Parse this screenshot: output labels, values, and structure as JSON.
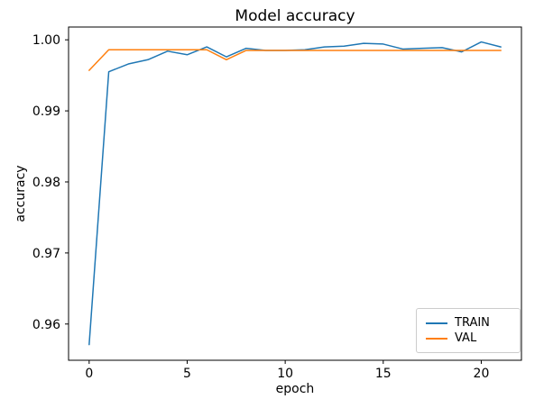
{
  "chart_data": {
    "type": "line",
    "title": "Model accuracy",
    "xlabel": "epoch",
    "ylabel": "accuracy",
    "grid": false,
    "legend_position": "lower right",
    "x": [
      0,
      1,
      2,
      3,
      4,
      5,
      6,
      7,
      8,
      9,
      10,
      11,
      12,
      13,
      14,
      15,
      16,
      17,
      18,
      19,
      20,
      21
    ],
    "series": [
      {
        "name": "TRAIN",
        "color": "#1f77b4",
        "values": [
          0.9571,
          0.9955,
          0.9966,
          0.9972,
          0.9984,
          0.9979,
          0.999,
          0.9976,
          0.9988,
          0.9985,
          0.9985,
          0.9986,
          0.999,
          0.9991,
          0.9995,
          0.9994,
          0.9987,
          0.9988,
          0.9989,
          0.9983,
          0.9997,
          0.999
        ]
      },
      {
        "name": "VAL",
        "color": "#ff7f0e",
        "values": [
          0.9957,
          0.9986,
          0.9986,
          0.9986,
          0.9986,
          0.9986,
          0.9986,
          0.9972,
          0.9985,
          0.9985,
          0.9985,
          0.9985,
          0.9985,
          0.9985,
          0.9985,
          0.9985,
          0.9985,
          0.9985,
          0.9985,
          0.9985,
          0.9985,
          0.9985
        ]
      }
    ],
    "xlim": [
      -1.05,
      22.05
    ],
    "ylim": [
      0.9549,
      1.0018
    ],
    "xticks": [
      0,
      5,
      10,
      15,
      20
    ],
    "xtick_labels": [
      "0",
      "5",
      "10",
      "15",
      "20"
    ],
    "yticks": [
      0.96,
      0.97,
      0.98,
      0.99,
      1.0
    ],
    "ytick_labels": [
      "0.96",
      "0.97",
      "0.98",
      "0.99",
      "1.00"
    ],
    "axis_color": "#000000",
    "tick_label_color": "#000000"
  }
}
